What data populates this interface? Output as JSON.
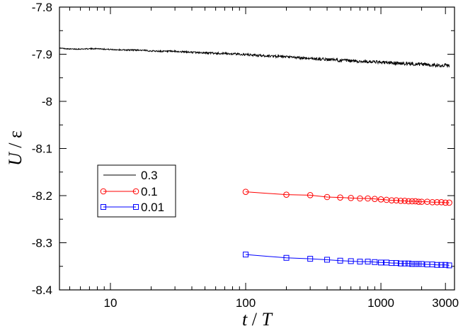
{
  "chart_data": {
    "type": "line",
    "title": "",
    "xlabel": {
      "main": "t",
      "sep": " / ",
      "unit": "T"
    },
    "ylabel": {
      "main": "U",
      "sep": " / ",
      "unit": "ε"
    },
    "xscale": "log",
    "xlim": [
      4.2,
      3500
    ],
    "ylim": [
      -8.4,
      -7.8
    ],
    "x_ticks": [
      {
        "value": 10,
        "label": "10"
      },
      {
        "value": 100,
        "label": "100"
      },
      {
        "value": 1000,
        "label": "1000"
      },
      {
        "value": 3000,
        "label": "3000"
      }
    ],
    "y_ticks": [
      {
        "value": -7.8,
        "label": "-7.8"
      },
      {
        "value": -7.9,
        "label": "-7.9"
      },
      {
        "value": -8.0,
        "label": "-8"
      },
      {
        "value": -8.1,
        "label": "-8.1"
      },
      {
        "value": -8.2,
        "label": "-8.2"
      },
      {
        "value": -8.3,
        "label": "-8.3"
      },
      {
        "value": -8.4,
        "label": "-8.4"
      }
    ],
    "legend_position": "lower-left",
    "series": [
      {
        "name": "0.3",
        "color": "#000000",
        "marker": "none",
        "noisy": true,
        "x": [
          4.2,
          5,
          6,
          8,
          10,
          13,
          16,
          20,
          25,
          30,
          40,
          50,
          60,
          80,
          100,
          130,
          160,
          200,
          300,
          400,
          500,
          600,
          800,
          1000,
          1300,
          1600,
          2000,
          2500,
          3000,
          3200
        ],
        "y": [
          -7.887,
          -7.889,
          -7.889,
          -7.888,
          -7.89,
          -7.891,
          -7.891,
          -7.893,
          -7.894,
          -7.894,
          -7.896,
          -7.897,
          -7.898,
          -7.899,
          -7.901,
          -7.903,
          -7.904,
          -7.906,
          -7.909,
          -7.911,
          -7.913,
          -7.914,
          -7.916,
          -7.917,
          -7.919,
          -7.92,
          -7.921,
          -7.923,
          -7.924,
          -7.925
        ]
      },
      {
        "name": "0.1",
        "color": "#ff0000",
        "marker": "circle",
        "noisy": false,
        "x": [
          100,
          200,
          300,
          400,
          500,
          600,
          700,
          800,
          900,
          1000,
          1100,
          1200,
          1300,
          1400,
          1500,
          1600,
          1700,
          1800,
          1900,
          2000,
          2200,
          2400,
          2600,
          2800,
          3000,
          3200
        ],
        "y": [
          -8.192,
          -8.198,
          -8.199,
          -8.203,
          -8.204,
          -8.205,
          -8.206,
          -8.206,
          -8.207,
          -8.208,
          -8.209,
          -8.21,
          -8.21,
          -8.211,
          -8.211,
          -8.212,
          -8.212,
          -8.212,
          -8.213,
          -8.213,
          -8.213,
          -8.214,
          -8.214,
          -8.214,
          -8.215,
          -8.215
        ]
      },
      {
        "name": "0.01",
        "color": "#0000ff",
        "marker": "square",
        "noisy": false,
        "x": [
          100,
          200,
          300,
          400,
          500,
          600,
          700,
          800,
          900,
          1000,
          1100,
          1200,
          1300,
          1400,
          1500,
          1600,
          1700,
          1800,
          1900,
          2000,
          2200,
          2400,
          2600,
          2800,
          3000,
          3200
        ],
        "y": [
          -8.325,
          -8.332,
          -8.334,
          -8.336,
          -8.338,
          -8.339,
          -8.34,
          -8.34,
          -8.341,
          -8.342,
          -8.342,
          -8.343,
          -8.343,
          -8.344,
          -8.344,
          -8.344,
          -8.345,
          -8.345,
          -8.345,
          -8.345,
          -8.346,
          -8.346,
          -8.347,
          -8.347,
          -8.347,
          -8.348
        ]
      }
    ]
  }
}
